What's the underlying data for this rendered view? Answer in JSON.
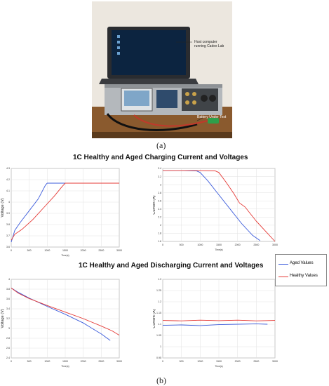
{
  "photo": {
    "host_label": "Host computer\nrunning Cadex Lab",
    "battery_label": "Battery Under Test"
  },
  "captions": {
    "a": "(a)",
    "b": "(b)"
  },
  "sections": {
    "charging_title": "1C Healthy and Aged Charging Current and Voltages",
    "discharging_title": "1C Healthy and Aged Discharging Current and Voltages"
  },
  "legend": {
    "aged": "Aged Values",
    "healthy": "Healthy Values",
    "aged_color": "#3b5bdb",
    "healthy_color": "#e53935"
  },
  "chart_data": [
    {
      "type": "line",
      "ylabel": "Voltage (V)",
      "xlabel": "Time(s)",
      "xlim": [
        0,
        3000
      ],
      "ylim": [
        3.55,
        4.35
      ],
      "xticks": [
        "0",
        "500",
        "1000",
        "1500",
        "2000",
        "2500",
        "3000"
      ],
      "yticks": [
        "3.6",
        "3.7",
        "3.8",
        "3.9",
        "4",
        "4.1",
        "4.2",
        "4.3"
      ],
      "grid": true,
      "series": [
        {
          "color": "aged",
          "x": [
            0,
            100,
            250,
            500,
            750,
            950,
            1000,
            1500,
            2000,
            2500,
            3000
          ],
          "y": [
            3.6,
            3.72,
            3.8,
            3.92,
            4.04,
            4.18,
            4.2,
            4.2,
            4.2,
            4.2,
            4.2
          ]
        },
        {
          "color": "healthy",
          "x": [
            0,
            100,
            300,
            600,
            900,
            1200,
            1400,
            1500,
            2000,
            2500,
            3000
          ],
          "y": [
            3.62,
            3.68,
            3.73,
            3.83,
            3.95,
            4.07,
            4.16,
            4.2,
            4.2,
            4.2,
            4.2
          ]
        }
      ]
    },
    {
      "type": "line",
      "ylabel": "Current (A)",
      "xlabel": "Time(s)",
      "xlim": [
        0,
        3000
      ],
      "ylim": [
        1.6,
        3.4
      ],
      "xticks": [
        "0",
        "500",
        "1000",
        "1500",
        "2000",
        "2500",
        "3000"
      ],
      "yticks": [
        "1.6",
        "1.8",
        "2",
        "2.2",
        "2.4",
        "2.6",
        "2.8",
        "3",
        "3.2",
        "3.4"
      ],
      "grid": true,
      "series": [
        {
          "color": "aged",
          "x": [
            0,
            500,
            900,
            1000,
            1200,
            1500,
            1800,
            2100,
            2400,
            2600
          ],
          "y": [
            3.35,
            3.35,
            3.34,
            3.3,
            3.1,
            2.75,
            2.4,
            2.05,
            1.75,
            1.62
          ]
        },
        {
          "color": "healthy",
          "x": [
            0,
            800,
            1400,
            1500,
            1700,
            1900,
            2050,
            2200,
            2500,
            2800,
            3000
          ],
          "y": [
            3.35,
            3.35,
            3.34,
            3.3,
            3.05,
            2.78,
            2.55,
            2.45,
            2.1,
            1.8,
            1.6
          ]
        }
      ]
    },
    {
      "type": "line",
      "ylabel": "Voltage (V)",
      "xlabel": "Time(s)",
      "xlim": [
        0,
        3000
      ],
      "ylim": [
        2.4,
        4.2
      ],
      "xticks": [
        "0",
        "500",
        "1000",
        "1500",
        "2000",
        "2500",
        "3000"
      ],
      "yticks": [
        "2.4",
        "2.6",
        "2.8",
        "3",
        "3.2",
        "3.4",
        "3.6",
        "3.8",
        "4"
      ],
      "grid": true,
      "series": [
        {
          "color": "aged",
          "x": [
            0,
            200,
            500,
            1000,
            1500,
            2000,
            2300,
            2500,
            2750
          ],
          "y": [
            4.0,
            3.9,
            3.77,
            3.58,
            3.4,
            3.2,
            3.05,
            2.95,
            2.8
          ]
        },
        {
          "color": "healthy",
          "x": [
            0,
            200,
            500,
            1000,
            1500,
            2000,
            2500,
            2800,
            3000
          ],
          "y": [
            4.0,
            3.88,
            3.76,
            3.6,
            3.45,
            3.3,
            3.13,
            3.02,
            2.92
          ]
        }
      ]
    },
    {
      "type": "line",
      "ylabel": "Current (A)",
      "xlabel": "Time(s)",
      "xlim": [
        0,
        3000
      ],
      "ylim": [
        0.95,
        1.3
      ],
      "xticks": [
        "0",
        "500",
        "1000",
        "1500",
        "2000",
        "2500",
        "3000"
      ],
      "yticks": [
        "0.95",
        "1",
        "1.05",
        "1.1",
        "1.15",
        "1.2",
        "1.25",
        "1.3"
      ],
      "grid": true,
      "series": [
        {
          "color": "aged",
          "x": [
            0,
            500,
            1000,
            1500,
            2000,
            2500,
            2800
          ],
          "y": [
            1.095,
            1.097,
            1.094,
            1.098,
            1.1,
            1.102,
            1.1
          ]
        },
        {
          "color": "healthy",
          "x": [
            0,
            500,
            1000,
            1500,
            2000,
            2500,
            3000
          ],
          "y": [
            1.117,
            1.115,
            1.118,
            1.116,
            1.118,
            1.115,
            1.117
          ]
        }
      ]
    }
  ]
}
